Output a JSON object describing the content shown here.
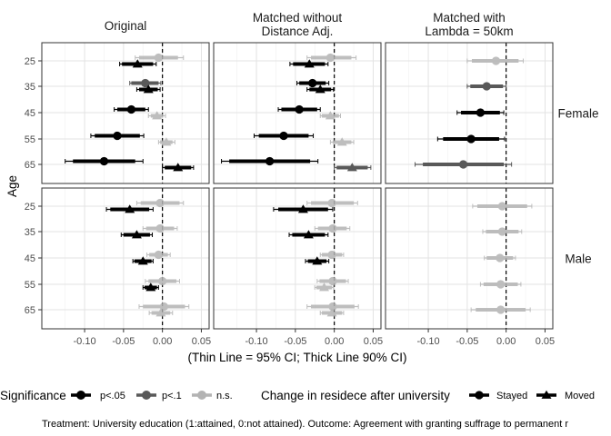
{
  "chart_data": {
    "type": "scatter",
    "subtype": "coefficient-forest-plot",
    "facet_columns": [
      "Original",
      "Matched without\nDistance Adj.",
      "Matched with\nLambda = 50km"
    ],
    "facet_rows": [
      "Female",
      "Male"
    ],
    "ylabel": "Age",
    "xlabel": "(Thin Line = 95% CI; Thick Line 90% CI)",
    "x_ticks": [
      -0.1,
      -0.05,
      0,
      0.05
    ],
    "x_tick_labels": [
      "-0.10",
      "-0.05",
      "0.00",
      "0.05"
    ],
    "xlim": [
      -0.155,
      0.06
    ],
    "y_categories": [
      "25",
      "35",
      "45",
      "55",
      "65"
    ],
    "reference_line_x": 0,
    "grid": true,
    "legend_position": "bottom",
    "legend": {
      "significance_title": "Significance",
      "significance_levels": [
        {
          "key": "p05",
          "label": "p<.05",
          "color": "#000000"
        },
        {
          "key": "p10",
          "label": "p<.1",
          "color": "#595959"
        },
        {
          "key": "ns",
          "label": "n.s.",
          "color": "#b3b3b3"
        }
      ],
      "residence_title": "Change in residece after university",
      "residence_levels": [
        {
          "key": "stayed",
          "label": "Stayed",
          "shape": "circle"
        },
        {
          "key": "moved",
          "label": "Moved",
          "shape": "triangle"
        }
      ]
    },
    "caption": "Treatment: University education (1:attained, 0:not attained). Outcome: Agreement with granting suffrage to permanent r",
    "panels": [
      {
        "col": 0,
        "row": 0,
        "points": [
          {
            "age": "25",
            "res": "stayed",
            "est": -0.005,
            "lo95": -0.035,
            "hi95": 0.027,
            "lo90": -0.03,
            "hi90": 0.02,
            "sig": "ns"
          },
          {
            "age": "25",
            "res": "moved",
            "est": -0.032,
            "lo95": -0.055,
            "hi95": -0.008,
            "lo90": -0.052,
            "hi90": -0.012,
            "sig": "p05"
          },
          {
            "age": "35",
            "res": "stayed",
            "est": -0.022,
            "lo95": -0.042,
            "hi95": -0.002,
            "lo90": -0.04,
            "hi90": -0.005,
            "sig": "p10"
          },
          {
            "age": "35",
            "res": "moved",
            "est": -0.018,
            "lo95": -0.033,
            "hi95": -0.003,
            "lo90": -0.03,
            "hi90": -0.006,
            "sig": "p05"
          },
          {
            "age": "45",
            "res": "stayed",
            "est": -0.04,
            "lo95": -0.062,
            "hi95": -0.018,
            "lo90": -0.058,
            "hi90": -0.022,
            "sig": "p05"
          },
          {
            "age": "45",
            "res": "moved",
            "est": -0.007,
            "lo95": -0.018,
            "hi95": 0.004,
            "lo90": -0.015,
            "hi90": 0.001,
            "sig": "ns"
          },
          {
            "age": "55",
            "res": "stayed",
            "est": -0.058,
            "lo95": -0.092,
            "hi95": -0.024,
            "lo90": -0.087,
            "hi90": -0.029,
            "sig": "p05"
          },
          {
            "age": "55",
            "res": "moved",
            "est": 0.005,
            "lo95": -0.005,
            "hi95": 0.016,
            "lo90": -0.003,
            "hi90": 0.013,
            "sig": "ns"
          },
          {
            "age": "65",
            "res": "stayed",
            "est": -0.075,
            "lo95": -0.125,
            "hi95": -0.025,
            "lo90": -0.115,
            "hi90": -0.035,
            "sig": "p05"
          },
          {
            "age": "65",
            "res": "moved",
            "est": 0.02,
            "lo95": 0.0,
            "hi95": 0.04,
            "lo90": 0.003,
            "hi90": 0.037,
            "sig": "p05"
          }
        ]
      },
      {
        "col": 1,
        "row": 0,
        "points": [
          {
            "age": "25",
            "res": "stayed",
            "est": -0.005,
            "lo95": -0.035,
            "hi95": 0.028,
            "lo90": -0.03,
            "hi90": 0.022,
            "sig": "ns"
          },
          {
            "age": "25",
            "res": "moved",
            "est": -0.032,
            "lo95": -0.057,
            "hi95": -0.008,
            "lo90": -0.053,
            "hi90": -0.012,
            "sig": "p05"
          },
          {
            "age": "35",
            "res": "stayed",
            "est": -0.028,
            "lo95": -0.048,
            "hi95": -0.007,
            "lo90": -0.045,
            "hi90": -0.011,
            "sig": "p05"
          },
          {
            "age": "35",
            "res": "moved",
            "est": -0.018,
            "lo95": -0.035,
            "hi95": -0.001,
            "lo90": -0.032,
            "hi90": -0.004,
            "sig": "p05"
          },
          {
            "age": "45",
            "res": "stayed",
            "est": -0.045,
            "lo95": -0.072,
            "hi95": -0.018,
            "lo90": -0.068,
            "hi90": -0.022,
            "sig": "p05"
          },
          {
            "age": "45",
            "res": "moved",
            "est": -0.005,
            "lo95": -0.018,
            "hi95": 0.008,
            "lo90": -0.016,
            "hi90": 0.006,
            "sig": "ns"
          },
          {
            "age": "55",
            "res": "stayed",
            "est": -0.065,
            "lo95": -0.103,
            "hi95": -0.027,
            "lo90": -0.097,
            "hi90": -0.033,
            "sig": "p05"
          },
          {
            "age": "55",
            "res": "moved",
            "est": 0.01,
            "lo95": -0.005,
            "hi95": 0.025,
            "lo90": -0.002,
            "hi90": 0.022,
            "sig": "ns"
          },
          {
            "age": "65",
            "res": "stayed",
            "est": -0.083,
            "lo95": -0.145,
            "hi95": -0.021,
            "lo90": -0.135,
            "hi90": -0.031,
            "sig": "p05"
          },
          {
            "age": "65",
            "res": "moved",
            "est": 0.023,
            "lo95": 0.0,
            "hi95": 0.047,
            "lo90": 0.003,
            "hi90": 0.043,
            "sig": "p10"
          }
        ]
      },
      {
        "col": 2,
        "row": 0,
        "points": [
          {
            "age": "25",
            "res": "stayed",
            "est": -0.013,
            "lo95": -0.05,
            "hi95": 0.022,
            "lo90": -0.044,
            "hi90": 0.016,
            "sig": "ns"
          },
          {
            "age": "35",
            "res": "stayed",
            "est": -0.025,
            "lo95": -0.05,
            "hi95": 0.0,
            "lo90": -0.046,
            "hi90": -0.004,
            "sig": "p10"
          },
          {
            "age": "45",
            "res": "stayed",
            "est": -0.033,
            "lo95": -0.063,
            "hi95": -0.003,
            "lo90": -0.058,
            "hi90": -0.008,
            "sig": "p05"
          },
          {
            "age": "55",
            "res": "stayed",
            "est": -0.045,
            "lo95": -0.088,
            "hi95": -0.002,
            "lo90": -0.081,
            "hi90": -0.009,
            "sig": "p05"
          },
          {
            "age": "65",
            "res": "stayed",
            "est": -0.055,
            "lo95": -0.117,
            "hi95": 0.007,
            "lo90": -0.107,
            "hi90": -0.003,
            "sig": "p10"
          }
        ]
      },
      {
        "col": 0,
        "row": 1,
        "points": [
          {
            "age": "25",
            "res": "stayed",
            "est": -0.003,
            "lo95": -0.033,
            "hi95": 0.027,
            "lo90": -0.028,
            "hi90": 0.022,
            "sig": "ns"
          },
          {
            "age": "25",
            "res": "moved",
            "est": -0.042,
            "lo95": -0.072,
            "hi95": -0.012,
            "lo90": -0.067,
            "hi90": -0.017,
            "sig": "p05"
          },
          {
            "age": "35",
            "res": "stayed",
            "est": -0.003,
            "lo95": -0.025,
            "hi95": 0.019,
            "lo90": -0.021,
            "hi90": 0.015,
            "sig": "ns"
          },
          {
            "age": "35",
            "res": "moved",
            "est": -0.033,
            "lo95": -0.053,
            "hi95": -0.013,
            "lo90": -0.05,
            "hi90": -0.016,
            "sig": "p05"
          },
          {
            "age": "45",
            "res": "stayed",
            "est": -0.005,
            "lo95": -0.02,
            "hi95": 0.01,
            "lo90": -0.017,
            "hi90": 0.007,
            "sig": "ns"
          },
          {
            "age": "45",
            "res": "moved",
            "est": -0.025,
            "lo95": -0.038,
            "hi95": -0.012,
            "lo90": -0.036,
            "hi90": -0.014,
            "sig": "p05"
          },
          {
            "age": "55",
            "res": "stayed",
            "est": 0.0,
            "lo95": -0.022,
            "hi95": 0.022,
            "lo90": -0.018,
            "hi90": 0.018,
            "sig": "ns"
          },
          {
            "age": "55",
            "res": "moved",
            "est": -0.015,
            "lo95": -0.025,
            "hi95": -0.005,
            "lo90": -0.023,
            "hi90": -0.007,
            "sig": "p05"
          },
          {
            "age": "65",
            "res": "stayed",
            "est": 0.002,
            "lo95": -0.03,
            "hi95": 0.034,
            "lo90": -0.025,
            "hi90": 0.029,
            "sig": "ns"
          },
          {
            "age": "65",
            "res": "moved",
            "est": -0.002,
            "lo95": -0.017,
            "hi95": 0.013,
            "lo90": -0.014,
            "hi90": 0.01,
            "sig": "ns"
          }
        ]
      },
      {
        "col": 1,
        "row": 1,
        "points": [
          {
            "age": "25",
            "res": "stayed",
            "est": -0.003,
            "lo95": -0.035,
            "hi95": 0.03,
            "lo90": -0.03,
            "hi90": 0.025,
            "sig": "ns"
          },
          {
            "age": "25",
            "res": "moved",
            "est": -0.04,
            "lo95": -0.078,
            "hi95": -0.002,
            "lo90": -0.072,
            "hi90": -0.008,
            "sig": "p05"
          },
          {
            "age": "35",
            "res": "stayed",
            "est": -0.002,
            "lo95": -0.025,
            "hi95": 0.02,
            "lo90": -0.021,
            "hi90": 0.016,
            "sig": "ns"
          },
          {
            "age": "35",
            "res": "moved",
            "est": -0.033,
            "lo95": -0.058,
            "hi95": -0.008,
            "lo90": -0.054,
            "hi90": -0.012,
            "sig": "p05"
          },
          {
            "age": "45",
            "res": "stayed",
            "est": -0.003,
            "lo95": -0.018,
            "hi95": 0.012,
            "lo90": -0.016,
            "hi90": 0.01,
            "sig": "ns"
          },
          {
            "age": "45",
            "res": "moved",
            "est": -0.022,
            "lo95": -0.037,
            "hi95": -0.007,
            "lo90": -0.034,
            "hi90": -0.01,
            "sig": "p05"
          },
          {
            "age": "55",
            "res": "stayed",
            "est": -0.002,
            "lo95": -0.022,
            "hi95": 0.018,
            "lo90": -0.019,
            "hi90": 0.015,
            "sig": "ns"
          },
          {
            "age": "55",
            "res": "moved",
            "est": -0.013,
            "lo95": -0.025,
            "hi95": -0.001,
            "lo90": -0.023,
            "hi90": -0.003,
            "sig": "ns"
          },
          {
            "age": "65",
            "res": "stayed",
            "est": -0.002,
            "lo95": -0.035,
            "hi95": 0.031,
            "lo90": -0.03,
            "hi90": 0.026,
            "sig": "ns"
          },
          {
            "age": "65",
            "res": "moved",
            "est": -0.003,
            "lo95": -0.018,
            "hi95": 0.012,
            "lo90": -0.016,
            "hi90": 0.01,
            "sig": "ns"
          }
        ]
      },
      {
        "col": 2,
        "row": 1,
        "points": [
          {
            "age": "25",
            "res": "stayed",
            "est": -0.005,
            "lo95": -0.043,
            "hi95": 0.033,
            "lo90": -0.037,
            "hi90": 0.027,
            "sig": "ns"
          },
          {
            "age": "35",
            "res": "stayed",
            "est": -0.005,
            "lo95": -0.03,
            "hi95": 0.02,
            "lo90": -0.026,
            "hi90": 0.016,
            "sig": "ns"
          },
          {
            "age": "45",
            "res": "stayed",
            "est": -0.008,
            "lo95": -0.028,
            "hi95": 0.012,
            "lo90": -0.025,
            "hi90": 0.009,
            "sig": "ns"
          },
          {
            "age": "55",
            "res": "stayed",
            "est": -0.007,
            "lo95": -0.033,
            "hi95": 0.019,
            "lo90": -0.029,
            "hi90": 0.015,
            "sig": "ns"
          },
          {
            "age": "65",
            "res": "stayed",
            "est": -0.007,
            "lo95": -0.045,
            "hi95": 0.031,
            "lo90": -0.039,
            "hi90": 0.025,
            "sig": "ns"
          }
        ]
      }
    ]
  }
}
